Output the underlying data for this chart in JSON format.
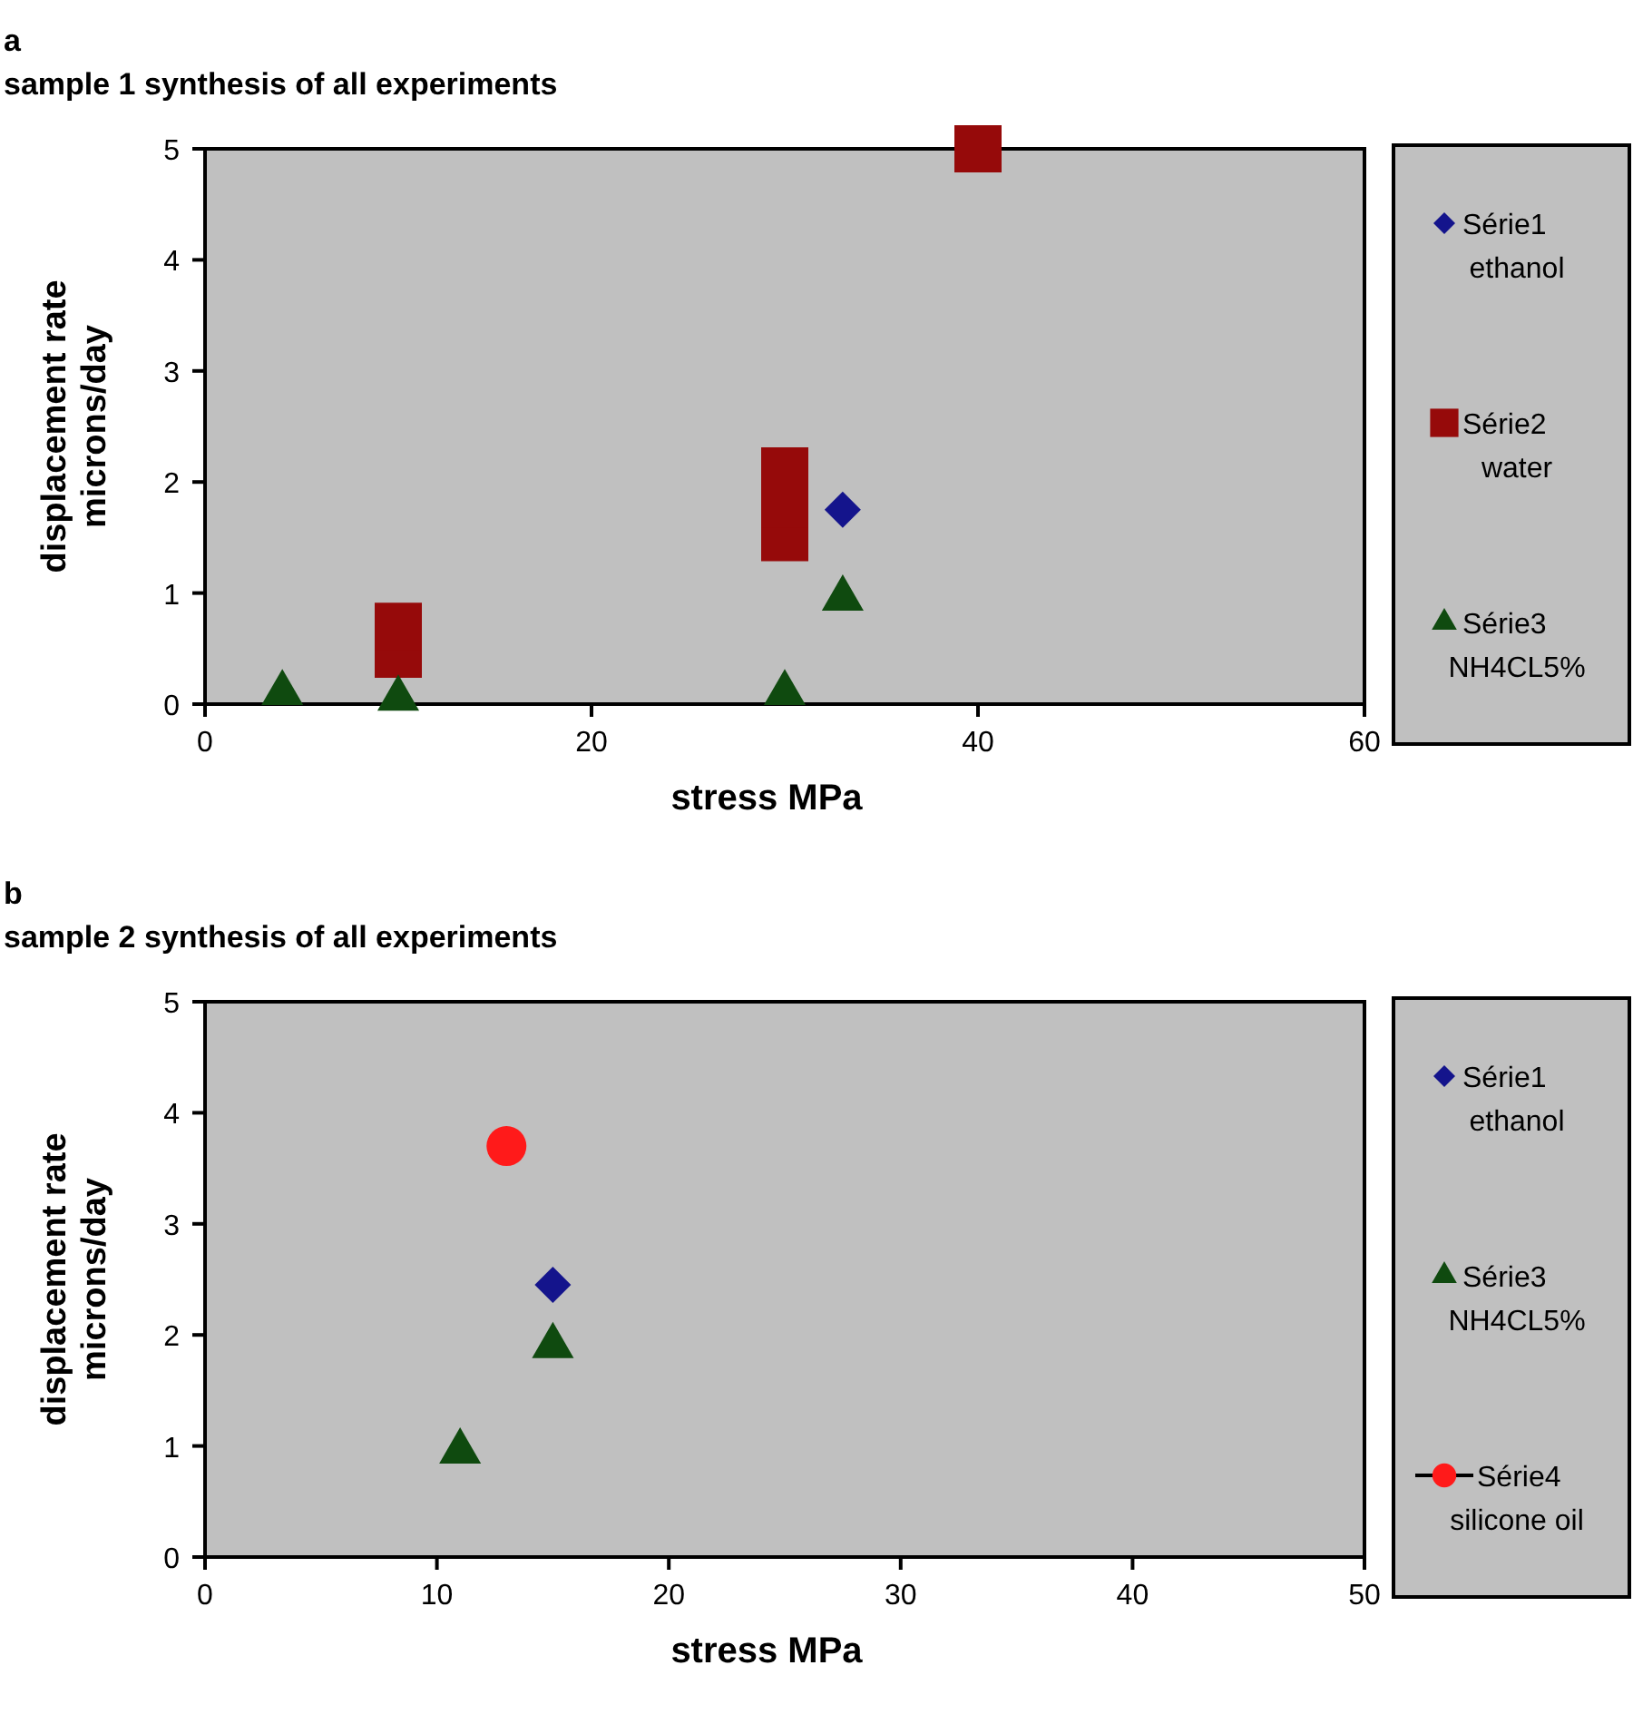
{
  "chart_data": [
    {
      "type": "scatter",
      "title": "sample 1 synthesis of all experiments",
      "annotations": [
        "a"
      ],
      "xlabel": "stress MPa",
      "ylabel": "displacement rate microns/day",
      "xlim": [
        0,
        60
      ],
      "xticks": [
        0,
        20,
        40,
        60
      ],
      "ylim": [
        0,
        5
      ],
      "yticks": [
        0,
        1,
        2,
        3,
        4,
        5
      ],
      "legend": "right",
      "grid": false,
      "series": [
        {
          "name": "Série1 ethanol",
          "color": "#14148c",
          "marker": "diamond",
          "x": [
            33
          ],
          "values": [
            1.75
          ]
        },
        {
          "name": "Série2 water",
          "color": "#960a0a",
          "marker": "square",
          "x": [
            10,
            10,
            30,
            30,
            30,
            40
          ],
          "values": [
            0.45,
            0.7,
            1.5,
            1.8,
            2.1,
            5
          ]
        },
        {
          "name": "Série3 NH4CL5%",
          "color": "#0f4a0f",
          "marker": "triangle",
          "x": [
            4,
            10,
            30,
            33
          ],
          "values": [
            0.1,
            0.05,
            0.1,
            0.95
          ]
        }
      ]
    },
    {
      "type": "scatter",
      "title": "sample 2 synthesis of all experiments",
      "annotations": [
        "b"
      ],
      "xlabel": "stress MPa",
      "ylabel": "displacement rate microns/day",
      "xlim": [
        0,
        50
      ],
      "xticks": [
        0,
        10,
        20,
        30,
        40,
        50
      ],
      "ylim": [
        0,
        5
      ],
      "yticks": [
        0,
        1,
        2,
        3,
        4,
        5
      ],
      "legend": "right",
      "grid": false,
      "series": [
        {
          "name": "Série1 ethanol",
          "color": "#14148c",
          "marker": "diamond",
          "x": [
            15
          ],
          "values": [
            2.45
          ]
        },
        {
          "name": "Série3 NH4CL5%",
          "color": "#0f4a0f",
          "marker": "triangle",
          "x": [
            11,
            15
          ],
          "values": [
            0.95,
            1.9
          ]
        },
        {
          "name": "Série4 silicone oil",
          "color": "#ff1a1a",
          "type": "line",
          "marker": "circle",
          "x": [
            13
          ],
          "values": [
            3.7
          ]
        }
      ]
    }
  ]
}
